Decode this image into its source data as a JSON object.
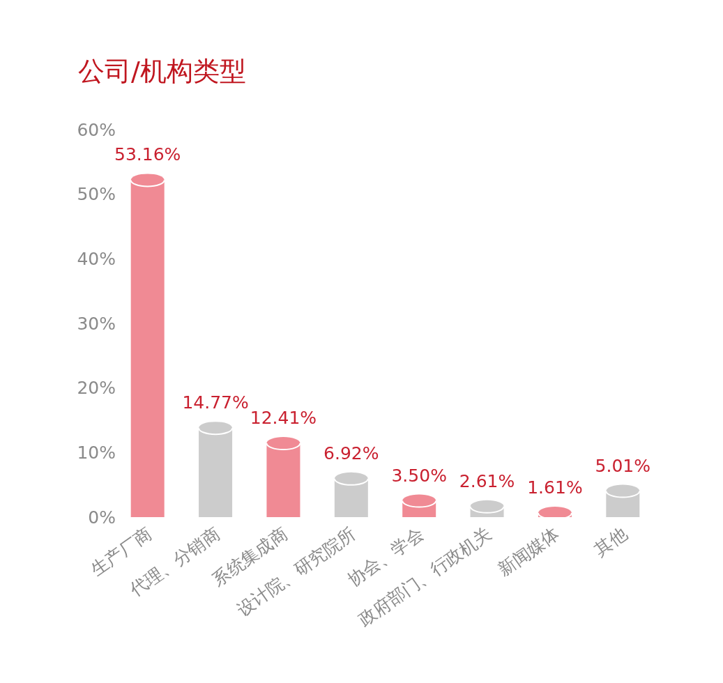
{
  "chart_data": {
    "type": "bar",
    "title": "公司/机构类型",
    "categories": [
      "生产厂商",
      "代理、分销商",
      "系统集成商",
      "设计院、研究院所",
      "协会、学会",
      "政府部门、行政机关",
      "新闻媒体",
      "其他"
    ],
    "values": [
      53.16,
      14.77,
      12.41,
      6.92,
      3.5,
      2.61,
      1.61,
      5.01
    ],
    "value_labels": [
      "53.16%",
      "14.77%",
      "12.41%",
      "6.92%",
      "3.50%",
      "2.61%",
      "1.61%",
      "5.01%"
    ],
    "colors": [
      "#f08a94",
      "#cccccc",
      "#f08a94",
      "#cccccc",
      "#f08a94",
      "#cccccc",
      "#f08a94",
      "#cccccc"
    ],
    "ylim": [
      0,
      60
    ],
    "yticks": [
      {
        "value": 0,
        "label": "0%"
      },
      {
        "value": 10,
        "label": "10%"
      },
      {
        "value": 20,
        "label": "20%"
      },
      {
        "value": 30,
        "label": "30%"
      },
      {
        "value": 40,
        "label": "40%"
      },
      {
        "value": 50,
        "label": "50%"
      },
      {
        "value": 60,
        "label": "60%"
      }
    ],
    "grid": false
  }
}
